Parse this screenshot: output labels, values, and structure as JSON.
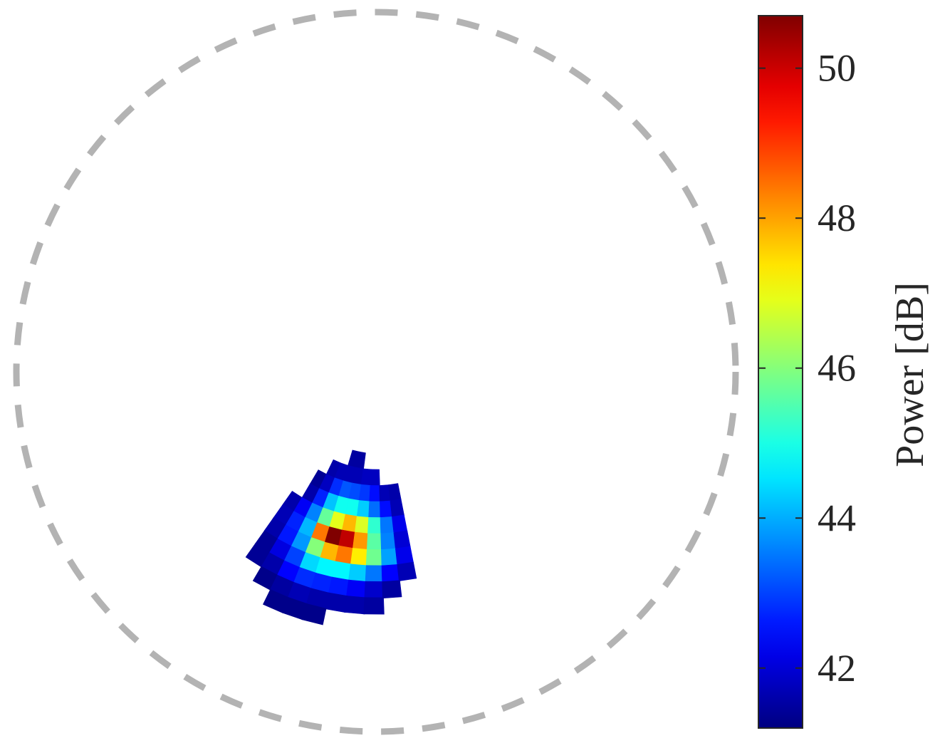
{
  "chart_data": {
    "type": "heatmap",
    "projection": "polar",
    "title": "",
    "boundary_circle": {
      "style": "dashed",
      "color": "#b3b3b3"
    },
    "colorbar": {
      "label": "Power [dB]",
      "colormap": "jet",
      "range": [
        41.2,
        50.7
      ],
      "ticks": [
        42,
        44,
        46,
        48,
        50
      ],
      "tick_labels": [
        "42",
        "44",
        "46",
        "48",
        "50"
      ],
      "placement": "right"
    },
    "grid": {
      "rows_inner_to_outer_desc": "row 0 = nearest center (top arc), increasing row = farther from center",
      "column_axis": "angular bins, col 0 = counter-clockwise edge",
      "values": [
        [
          null,
          null,
          null,
          null,
          41.5,
          41.5,
          null,
          null,
          null,
          null
        ],
        [
          null,
          null,
          41.6,
          41.7,
          41.7,
          41.7,
          41.8,
          41.8,
          null,
          null
        ],
        [
          null,
          41.4,
          41.8,
          42.8,
          43.2,
          43.1,
          42.9,
          42.5,
          41.7,
          41.6
        ],
        [
          null,
          41.6,
          42.7,
          44.2,
          44.9,
          44.9,
          44.3,
          43.4,
          42.5,
          41.7
        ],
        [
          41.6,
          42.3,
          43.6,
          45.7,
          46.9,
          47.8,
          46.8,
          45.2,
          43.5,
          42.2
        ],
        [
          41.7,
          42.7,
          44.1,
          48.4,
          50.7,
          50.1,
          48.1,
          45.6,
          43.6,
          42.0
        ],
        [
          41.6,
          42.6,
          43.8,
          46.0,
          47.8,
          48.4,
          47.3,
          45.8,
          43.9,
          42.2
        ],
        [
          41.4,
          42.1,
          43.0,
          44.4,
          44.7,
          44.7,
          44.3,
          43.5,
          42.4,
          41.7
        ],
        [
          41.4,
          41.6,
          42.4,
          42.8,
          42.7,
          42.6,
          42.3,
          41.9,
          41.5,
          null
        ],
        [
          null,
          41.3,
          41.5,
          41.7,
          41.6,
          41.6,
          41.6,
          41.5,
          null,
          null
        ],
        [
          null,
          null,
          41.3,
          41.3,
          41.3,
          null,
          null,
          null,
          null,
          null
        ]
      ]
    }
  }
}
